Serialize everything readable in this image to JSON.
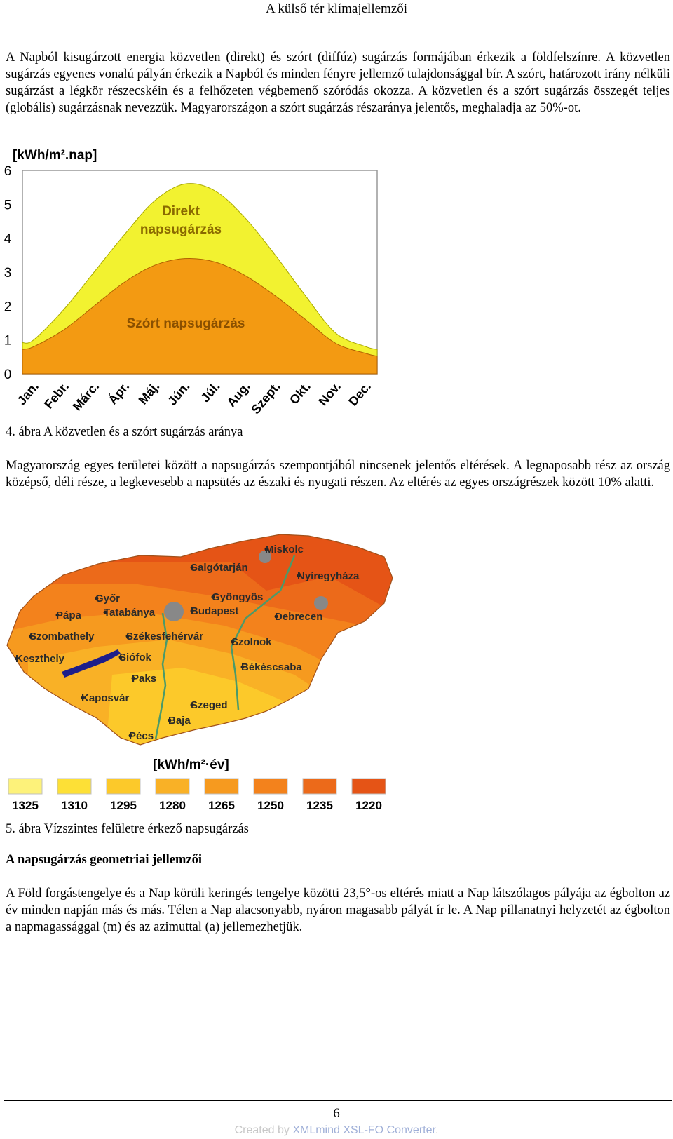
{
  "header": {
    "title": "A külső tér klímajellemzői"
  },
  "paragraphs": {
    "p1": "A Napból kisugárzott energia közvetlen (direkt) és szórt (diffúz) sugárzás formájában érkezik a földfelszínre. A közvetlen sugárzás egyenes vonalú pályán érkezik a Napból és minden fényre jellemző tulajdonsággal bír. A szórt, határozott irány nélküli sugárzást a légkör részecskéin és a felhőzeten végbemenő szóródás okozza. A közvetlen és a szórt sugárzás összegét teljes (globális) sugárzásnak nevezzük. Magyarországon a szórt sugárzás részaránya jelentős, meghaladja az 50%-ot.",
    "p2": "Magyarország egyes területei között a napsugárzás szempontjából nincsenek jelentős eltérések. A legnaposabb rész az ország középső, déli része, a legkevesebb a napsütés az északi és nyugati részen. Az eltérés az egyes országrészek között 10% alatti.",
    "p3": "A Föld forgástengelye és a Nap körüli keringés tengelye közötti 23,5°-os eltérés miatt a Nap látszólagos pályája az égbolton az év minden napján más és más. Télen a Nap alacsonyabb, nyáron magasabb pályát ír le. A Nap pillanatnyi helyzetét az égbolton a napmagassággal (m) és az azimuttal (a) jellemezhetjük."
  },
  "figures": {
    "fig4_caption": "4. ábra A közvetlen és a szórt sugárzás aránya",
    "fig5_caption": "5. ábra Vízszintes felületre érkező napsugárzás"
  },
  "section": {
    "heading": "A napsugárzás geometriai jellemzői"
  },
  "chart_data": {
    "type": "area",
    "ylabel": "[kWh/m².nap]",
    "ylim": [
      0,
      6
    ],
    "yticks": [
      "0",
      "1",
      "2",
      "3",
      "4",
      "5",
      "6"
    ],
    "categories": [
      "Jan.",
      "Febr.",
      "Márc.",
      "Ápr.",
      "Máj.",
      "Jún.",
      "Júl.",
      "Aug.",
      "Szept.",
      "Okt.",
      "Nov.",
      "Dec."
    ],
    "series": [
      {
        "name": "Szórt napsugárzás",
        "values": [
          0.8,
          1.3,
          2.0,
          2.7,
          3.2,
          3.4,
          3.3,
          2.9,
          2.3,
          1.6,
          0.9,
          0.6
        ],
        "color": "#f39a12"
      },
      {
        "name": "Direkt napsugárzás",
        "values": [
          1.0,
          1.9,
          3.0,
          4.1,
          5.1,
          5.6,
          5.4,
          4.6,
          3.5,
          2.3,
          1.2,
          0.8
        ],
        "color": "#f2f230"
      }
    ],
    "grid": false
  },
  "map": {
    "cities": [
      "Miskolc",
      "Salgótarján",
      "Nyíregyháza",
      "Győr",
      "Gyöngyös",
      "Pápa",
      "Tatabánya",
      "Budapest",
      "Debrecen",
      "Szombathely",
      "Székesfehérvár",
      "Szolnok",
      "Keszthely",
      "Siófok",
      "Békéscsaba",
      "Paks",
      "Kaposvár",
      "Szeged",
      "Baja",
      "Pécs"
    ],
    "legend_title": "[kWh/m²·év]",
    "legend": [
      {
        "label": "1325",
        "color": "#fdf27a"
      },
      {
        "label": "1310",
        "color": "#fde036"
      },
      {
        "label": "1295",
        "color": "#fcc92a"
      },
      {
        "label": "1280",
        "color": "#f9b126"
      },
      {
        "label": "1265",
        "color": "#f69a1f"
      },
      {
        "label": "1250",
        "color": "#f3821c"
      },
      {
        "label": "1235",
        "color": "#ec6a1a"
      },
      {
        "label": "1220",
        "color": "#e55416"
      }
    ]
  },
  "footer": {
    "page_number": "6",
    "credit_prefix": "Created by ",
    "credit_link": "XMLmind XSL-FO Converter",
    "credit_suffix": "."
  }
}
